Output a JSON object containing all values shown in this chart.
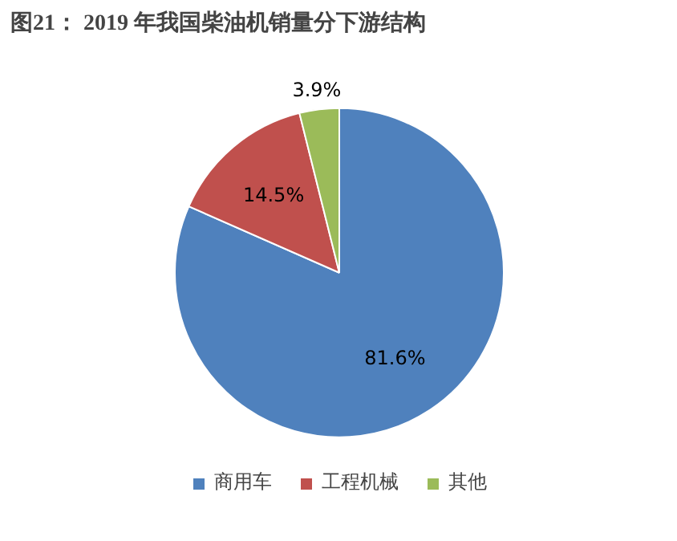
{
  "chart_data": {
    "type": "pie",
    "title": "图21：   2019 年我国柴油机销量分下游结构",
    "categories": [
      "商用车",
      "工程机械",
      "其他"
    ],
    "values": [
      81.6,
      14.5,
      3.9
    ],
    "colors": [
      "#4f81bd",
      "#c0504d",
      "#9bbb59"
    ],
    "value_labels": [
      "81.6%",
      "14.5%",
      "3.9%"
    ],
    "legend": "bottom"
  }
}
